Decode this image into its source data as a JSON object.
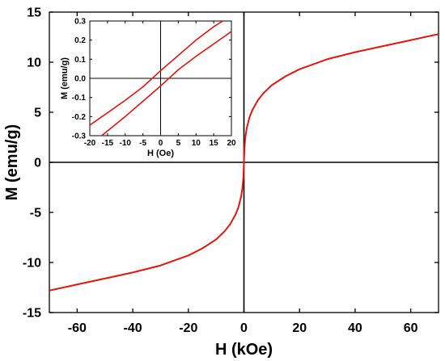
{
  "chart_data": [
    {
      "type": "line",
      "xlabel": "H (kOe)",
      "ylabel": "M (emu/g)",
      "xlim": [
        -70,
        70
      ],
      "ylim": [
        -15,
        15
      ],
      "xticks": [
        -60,
        -40,
        -20,
        0,
        20,
        40,
        60
      ],
      "xtick_labels": [
        "-60",
        "-40",
        "-20",
        "0",
        "20",
        "40",
        "60"
      ],
      "yticks": [
        -15,
        -10,
        -5,
        0,
        5,
        10,
        15
      ],
      "ytick_labels": [
        "-15",
        "-10",
        "-5",
        "0",
        "5",
        "10",
        "15"
      ],
      "zero_lines": true,
      "series": [
        {
          "color": "#e8140c",
          "x": [
            -70,
            -60,
            -50,
            -40,
            -30,
            -20,
            -15,
            -10,
            -7,
            -5,
            -3,
            -2,
            -1,
            -0.5,
            -0.2,
            0,
            0.2,
            0.5,
            1,
            2,
            3,
            5,
            7,
            10,
            15,
            20,
            30,
            40,
            50,
            60,
            70
          ],
          "y": [
            -12.8,
            -12.2,
            -11.6,
            -11.0,
            -10.3,
            -9.3,
            -8.6,
            -7.7,
            -6.9,
            -6.2,
            -5.2,
            -4.5,
            -3.4,
            -2.5,
            -1.5,
            0,
            1.5,
            2.5,
            3.4,
            4.5,
            5.2,
            6.2,
            6.9,
            7.7,
            8.6,
            9.3,
            10.3,
            11.0,
            11.6,
            12.2,
            12.8
          ]
        }
      ]
    },
    {
      "type": "line",
      "inset": true,
      "xlabel": "H (Oe)",
      "ylabel": "M (emu/g)",
      "xlim": [
        -20,
        20
      ],
      "ylim": [
        -0.3,
        0.3
      ],
      "xticks": [
        -20,
        -15,
        -10,
        -5,
        0,
        5,
        10,
        15,
        20
      ],
      "xtick_labels": [
        "-20",
        "-15",
        "-10",
        "-5",
        "0",
        "5",
        "10",
        "15",
        "20"
      ],
      "yticks": [
        -0.3,
        -0.2,
        -0.1,
        0.0,
        0.1,
        0.2,
        0.3
      ],
      "ytick_labels": [
        "-0.3",
        "-0.2",
        "-0.1",
        "0.0",
        "0.1",
        "0.2",
        "0.3"
      ],
      "zero_lines": true,
      "series": [
        {
          "color": "#e8140c",
          "x": [
            -20,
            -15,
            -10,
            -5,
            0,
            5,
            10,
            15,
            18
          ],
          "y": [
            -0.245,
            -0.18,
            -0.115,
            -0.045,
            0.04,
            0.12,
            0.2,
            0.27,
            0.305
          ]
        },
        {
          "color": "#e8140c",
          "x": [
            -17,
            -15,
            -10,
            -5,
            0,
            5,
            10,
            15,
            20
          ],
          "y": [
            -0.305,
            -0.275,
            -0.2,
            -0.12,
            -0.04,
            0.045,
            0.115,
            0.18,
            0.245
          ]
        }
      ]
    }
  ]
}
